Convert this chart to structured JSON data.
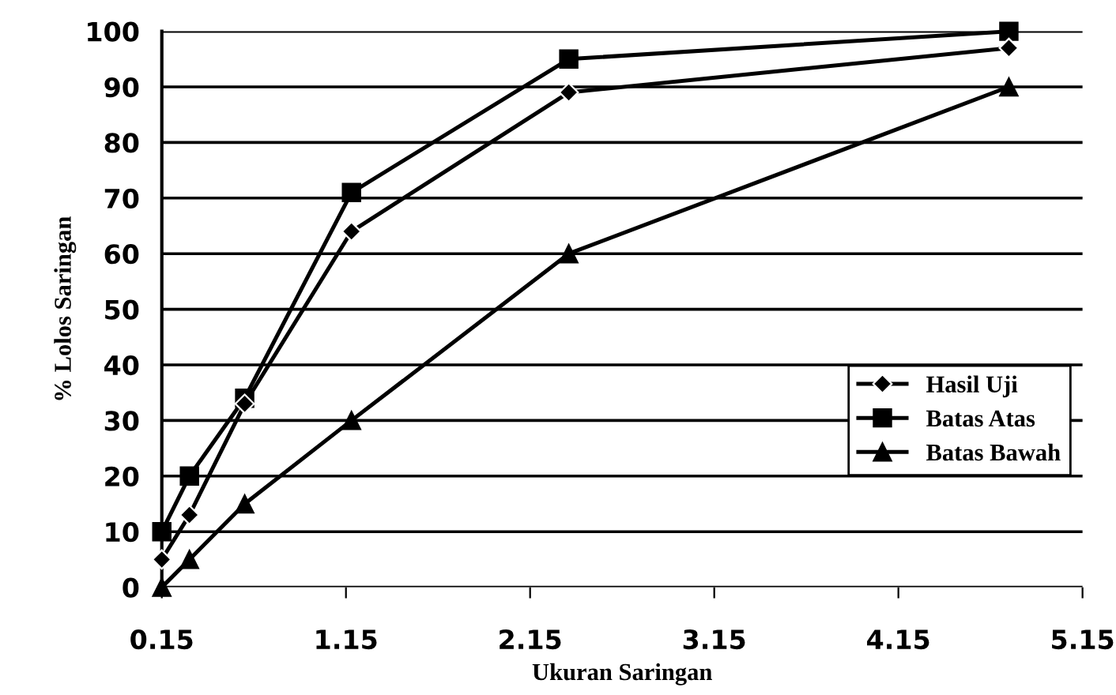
{
  "chart_data": {
    "type": "line",
    "xlabel": "Ukuran Saringan",
    "ylabel": "% Lolos Saringan",
    "series": [
      {
        "name": "Hasil Uji",
        "color": "#000000",
        "marker": "diamond",
        "x": [
          0.15,
          0.3,
          0.6,
          1.18,
          2.36,
          4.75
        ],
        "values": [
          5,
          13,
          33,
          64,
          89,
          97
        ]
      },
      {
        "name": "Batas Atas",
        "color": "#000000",
        "marker": "square",
        "x": [
          0.15,
          0.3,
          0.6,
          1.18,
          2.36,
          4.75
        ],
        "values": [
          10,
          20,
          34,
          71,
          95,
          100
        ]
      },
      {
        "name": "Batas Bawah",
        "color": "#000000",
        "marker": "triangle",
        "x": [
          0.15,
          0.3,
          0.6,
          1.18,
          2.36,
          4.75
        ],
        "values": [
          0,
          5,
          15,
          30,
          60,
          90
        ]
      }
    ],
    "xlim": [
      0.15,
      5.15
    ],
    "xticks": [
      0.15,
      {
        "value": 1.15,
        "label": "1.15"
      },
      2.15,
      3.15,
      4.15,
      5.15
    ],
    "ylim": [
      0,
      100
    ],
    "yticks": [
      0,
      10,
      20,
      30,
      40,
      50,
      60,
      70,
      80,
      90,
      100
    ],
    "grid": "y",
    "legend": "right",
    "line_style": "solid"
  }
}
